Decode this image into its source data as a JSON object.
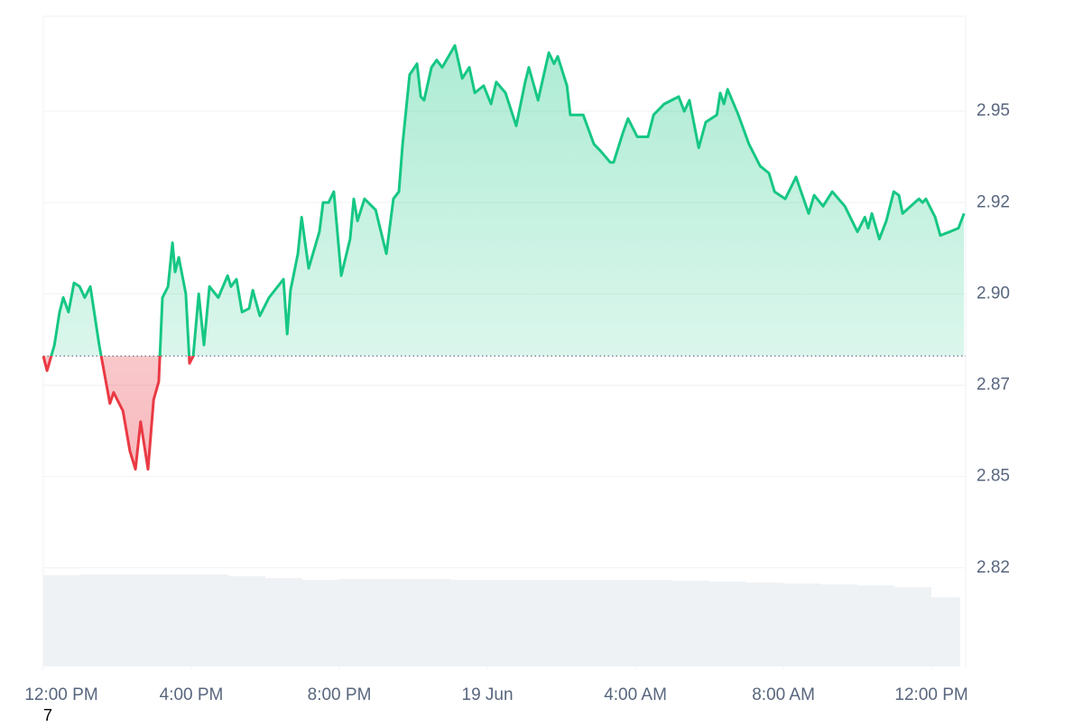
{
  "chart_data": {
    "type": "line",
    "x": [
      0,
      0.1,
      0.3,
      0.44,
      0.54,
      0.68,
      0.83,
      0.98,
      1.12,
      1.27,
      1.51,
      1.8,
      1.9,
      2.15,
      2.34,
      2.49,
      2.63,
      2.83,
      2.98,
      3.12,
      3.22,
      3.37,
      3.49,
      3.56,
      3.66,
      3.85,
      3.95,
      4.05,
      4.2,
      4.34,
      4.49,
      4.73,
      4.98,
      5.07,
      5.22,
      5.37,
      5.56,
      5.66,
      5.85,
      6.1,
      6.49,
      6.59,
      6.68,
      6.88,
      6.98,
      7.17,
      7.46,
      7.56,
      7.71,
      7.85,
      8.05,
      8.29,
      8.39,
      8.49,
      8.68,
      8.98,
      9.27,
      9.46,
      9.61,
      9.71,
      9.9,
      10.1,
      10.2,
      10.29,
      10.49,
      10.63,
      10.78,
      11.12,
      11.32,
      11.51,
      11.66,
      11.9,
      12.1,
      12.24,
      12.49,
      12.78,
      13.02,
      13.12,
      13.37,
      13.66,
      13.8,
      13.9,
      14.15,
      14.24,
      14.59,
      14.88,
      15.07,
      15.32,
      15.41,
      15.66,
      15.8,
      16.05,
      16.34,
      16.49,
      16.78,
      17.17,
      17.32,
      17.46,
      17.71,
      17.9,
      18.2,
      18.29,
      18.39,
      18.49,
      18.78,
      19.07,
      19.37,
      19.61,
      19.76,
      20.05,
      20.34,
      20.68,
      20.83,
      21.07,
      21.32,
      21.66,
      22,
      22.2,
      22.29,
      22.39,
      22.59,
      22.78,
      22.98,
      23.12,
      23.22,
      23.66,
      23.76,
      23.85,
      24.1,
      24.24,
      24.49,
      24.73,
      24.88
    ],
    "values": [
      2.883,
      2.879,
      2.886,
      2.895,
      2.899,
      2.895,
      2.903,
      2.902,
      2.899,
      2.902,
      2.886,
      2.87,
      2.873,
      2.868,
      2.857,
      2.852,
      2.865,
      2.852,
      2.871,
      2.876,
      2.899,
      2.902,
      2.914,
      2.906,
      2.91,
      2.9,
      2.881,
      2.883,
      2.9,
      2.886,
      2.902,
      2.899,
      2.905,
      2.902,
      2.904,
      2.895,
      2.896,
      2.901,
      2.894,
      2.899,
      2.904,
      2.889,
      2.901,
      2.911,
      2.921,
      2.907,
      2.917,
      2.925,
      2.925,
      2.928,
      2.905,
      2.915,
      2.926,
      2.92,
      2.926,
      2.923,
      2.911,
      2.926,
      2.928,
      2.941,
      2.96,
      2.963,
      2.954,
      2.953,
      2.962,
      2.964,
      2.962,
      2.968,
      2.959,
      2.962,
      2.955,
      2.957,
      2.952,
      2.958,
      2.955,
      2.946,
      2.958,
      2.962,
      2.953,
      2.966,
      2.963,
      2.965,
      2.957,
      2.949,
      2.949,
      2.941,
      2.939,
      2.936,
      2.936,
      2.944,
      2.948,
      2.943,
      2.943,
      2.949,
      2.952,
      2.954,
      2.95,
      2.953,
      2.94,
      2.947,
      2.949,
      2.955,
      2.952,
      2.956,
      2.949,
      2.941,
      2.935,
      2.933,
      2.928,
      2.926,
      2.932,
      2.922,
      2.927,
      2.924,
      2.928,
      2.924,
      2.917,
      2.921,
      2.918,
      2.922,
      2.915,
      2.92,
      2.928,
      2.927,
      2.922,
      2.926,
      2.925,
      2.926,
      2.921,
      2.916,
      2.917,
      2.918,
      2.922
    ],
    "reference": 2.883,
    "up_color": "#16c784",
    "down_color": "#ea3943",
    "volume": {
      "x": [
        0,
        1,
        2,
        3,
        4,
        5,
        6,
        7,
        8,
        9,
        10,
        11,
        12,
        13,
        14,
        15,
        16,
        17,
        18,
        19,
        20,
        21,
        22,
        23,
        24,
        24.8
      ],
      "values": [
        100,
        101,
        101,
        101,
        101,
        99,
        97,
        95,
        96,
        96,
        96,
        95,
        95,
        95,
        95,
        95,
        95,
        94,
        93,
        92,
        91,
        90,
        89,
        87,
        76,
        73
      ],
      "color": "#eff2f5"
    },
    "xlim": [
      0,
      24.9
    ],
    "ylim": [
      2.798,
      2.976
    ],
    "xticks": [
      {
        "value": 0,
        "label": "12:00 PM"
      },
      {
        "value": 4,
        "label": "4:00 PM"
      },
      {
        "value": 8,
        "label": "8:00 PM"
      },
      {
        "value": 12,
        "label": "19 Jun"
      },
      {
        "value": 16,
        "label": "4:00 AM"
      },
      {
        "value": 20,
        "label": "8:00 AM"
      },
      {
        "value": 24,
        "label": "12:00 PM"
      }
    ],
    "yticks": [
      {
        "value": 2.825,
        "label": "2.82"
      },
      2.85,
      {
        "value": 2.875,
        "label": "2.87"
      },
      {
        "value": 2.9,
        "label": "2.90"
      },
      {
        "value": 2.925,
        "label": "2.92"
      },
      2.95
    ],
    "grid": true,
    "footnote": "7"
  }
}
